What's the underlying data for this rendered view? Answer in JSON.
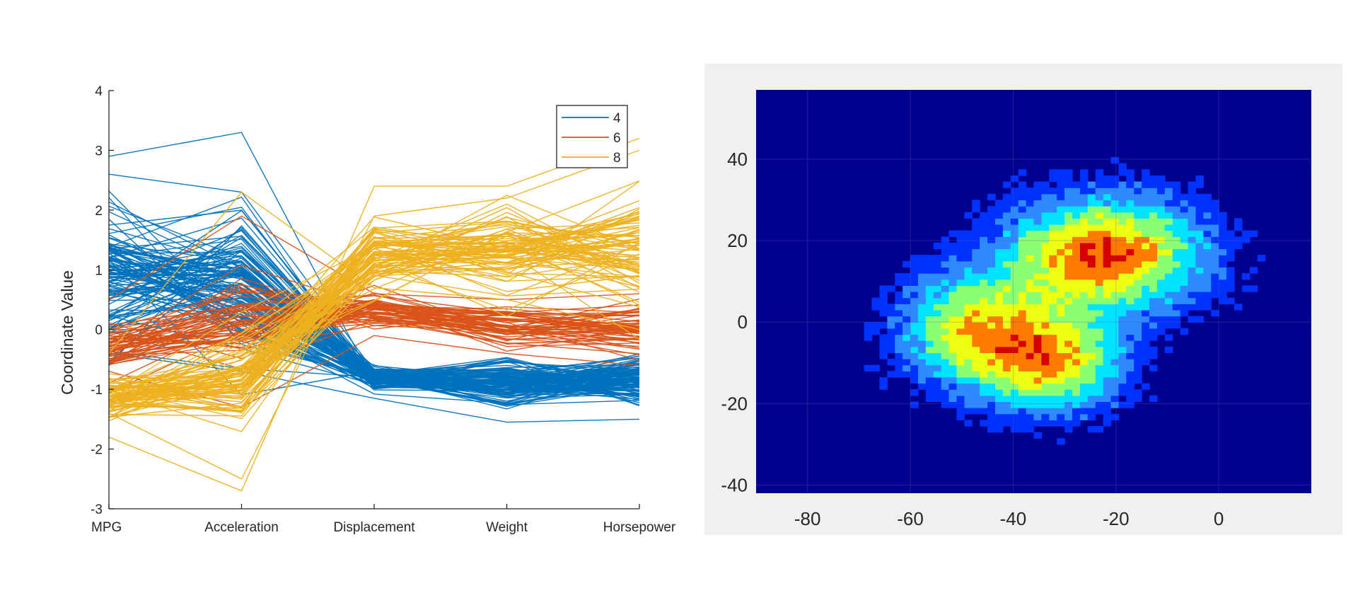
{
  "chart_data": [
    {
      "type": "line",
      "subtype": "parallel-coordinates",
      "title": "",
      "xlabel": "",
      "ylabel": "Coordinate Value",
      "categories": [
        "MPG",
        "Acceleration",
        "Displacement",
        "Weight",
        "Horsepower"
      ],
      "ylim": [
        -3,
        4
      ],
      "yticks": [
        "-3",
        "-2",
        "-1",
        "0",
        "1",
        "2",
        "3",
        "4"
      ],
      "grid": false,
      "legend_position": "top-right",
      "series": [
        {
          "name": "4",
          "color": "#0072BD",
          "lines_drawn": 120,
          "center": [
            0.9,
            0.8,
            -0.8,
            -0.9,
            -0.85
          ],
          "spread": [
            0.9,
            0.9,
            0.15,
            0.3,
            0.3
          ],
          "extremes": [
            [
              2.9,
              3.3,
              -0.9,
              -1.0,
              -1.1
            ],
            [
              -0.4,
              -0.7,
              -1.15,
              -1.55,
              -1.5
            ],
            [
              2.6,
              2.3,
              -0.7,
              -0.6,
              -0.8
            ]
          ]
        },
        {
          "name": "6",
          "color": "#D95319",
          "lines_drawn": 60,
          "center": [
            -0.3,
            0.2,
            0.3,
            0.1,
            0.0
          ],
          "spread": [
            0.3,
            0.6,
            0.2,
            0.3,
            0.35
          ],
          "extremes": [
            [
              0.5,
              1.9,
              0.6,
              0.5,
              0.6
            ],
            [
              -0.7,
              -1.3,
              -0.1,
              -0.4,
              -0.6
            ]
          ]
        },
        {
          "name": "8",
          "color": "#EDB120",
          "lines_drawn": 85,
          "center": [
            -1.1,
            -0.9,
            1.2,
            1.3,
            1.3
          ],
          "spread": [
            0.3,
            0.6,
            0.5,
            0.6,
            0.8
          ],
          "extremes": [
            [
              -1.8,
              -2.7,
              2.4,
              2.4,
              3.2
            ],
            [
              -0.4,
              2.3,
              0.7,
              0.5,
              0.0
            ],
            [
              -1.4,
              -2.5,
              1.9,
              2.2,
              3.0
            ]
          ]
        }
      ]
    },
    {
      "type": "contour",
      "subtype": "filled-contour",
      "title": "",
      "xlabel": "",
      "ylabel": "",
      "xlim": [
        -90,
        18
      ],
      "ylim": [
        -42,
        57
      ],
      "xticks": [
        "-80",
        "-60",
        "-40",
        "-20",
        "0"
      ],
      "yticks": [
        "-40",
        "-20",
        "0",
        "20",
        "40"
      ],
      "grid": true,
      "colormap": [
        "#00008F",
        "#0032FF",
        "#2E8BFF",
        "#00E4FF",
        "#8BFF74",
        "#EDFF11",
        "#FF7A00",
        "#D60000"
      ],
      "clusters": [
        {
          "cx": -22,
          "cy": 17,
          "sx": 14,
          "sy": 10,
          "peak": 7
        },
        {
          "cx": -49,
          "cy": -2,
          "sx": 10,
          "sy": 10,
          "peak": 5
        },
        {
          "cx": -32,
          "cy": -10,
          "sx": 10,
          "sy": 9,
          "peak": 5.5
        }
      ]
    }
  ]
}
